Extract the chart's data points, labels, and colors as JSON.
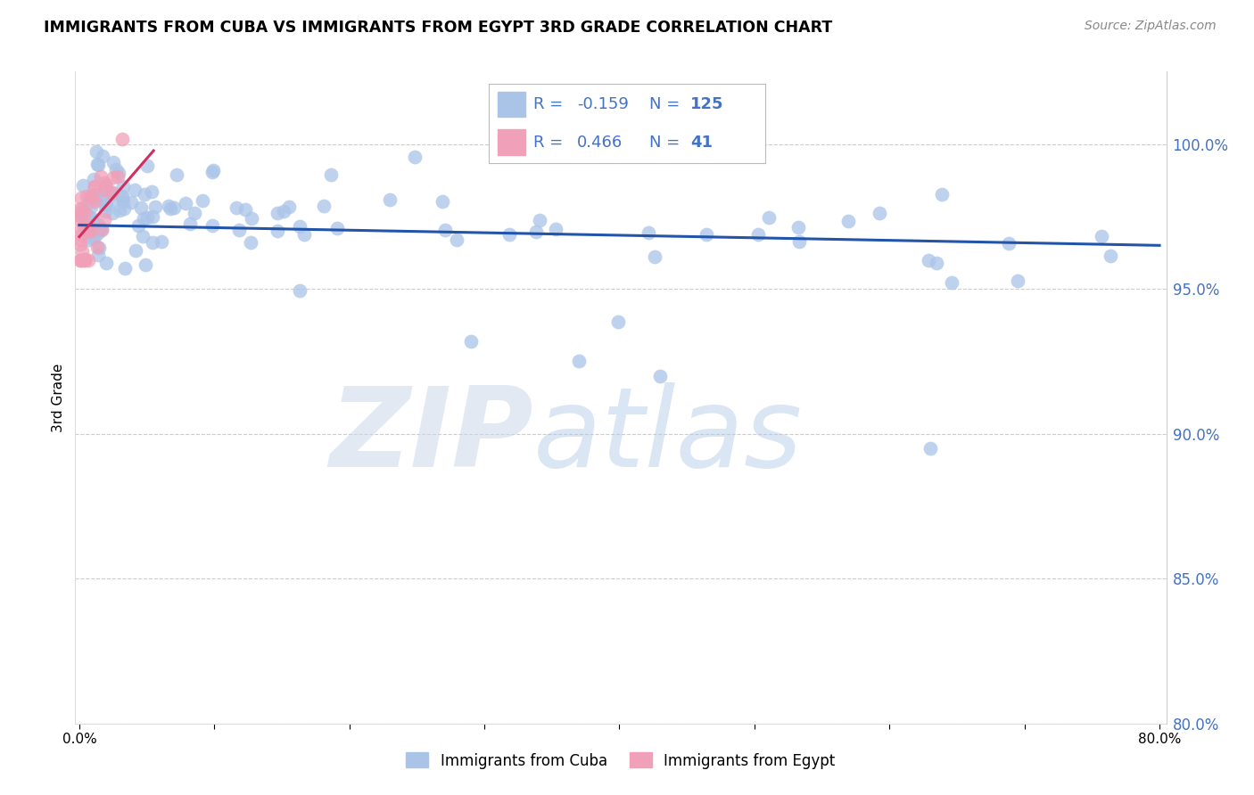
{
  "title": "IMMIGRANTS FROM CUBA VS IMMIGRANTS FROM EGYPT 3RD GRADE CORRELATION CHART",
  "source": "Source: ZipAtlas.com",
  "ylabel": "3rd Grade",
  "xlim": [
    0.0,
    80.0
  ],
  "ylim": [
    80.0,
    102.5
  ],
  "y_ticks": [
    80.0,
    85.0,
    90.0,
    95.0,
    100.0
  ],
  "y_tick_labels": [
    "80.0%",
    "85.0%",
    "90.0%",
    "95.0%",
    "100.0%"
  ],
  "cuba_color": "#aac4e8",
  "egypt_color": "#f0a0b8",
  "cuba_line_color": "#2255aa",
  "egypt_line_color": "#d03060",
  "legend_R_cuba": "-0.159",
  "legend_N_cuba": "125",
  "legend_R_egypt": "0.466",
  "legend_N_egypt": "41",
  "background_color": "#ffffff",
  "grid_color": "#cccccc",
  "watermark_zip": "ZIP",
  "watermark_atlas": "atlas",
  "seed": 123
}
